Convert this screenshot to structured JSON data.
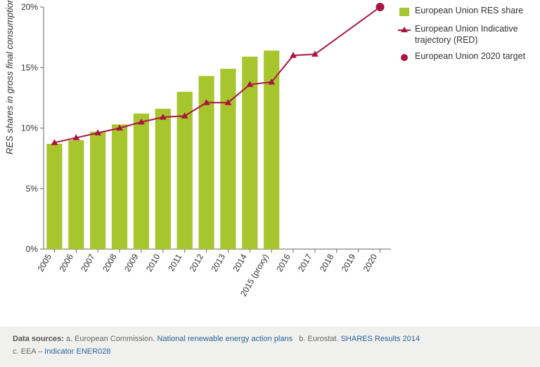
{
  "chart": {
    "type": "bar+line+point",
    "ylabel": "RES shares in gross final consumption",
    "ylabel_fontsize": 13,
    "ylabel_italic": true,
    "ylim": [
      0,
      20
    ],
    "ytick_step": 5,
    "ytick_suffix": "%",
    "tick_fontsize": 12,
    "background_color": "#ffffff",
    "axis_color": "#666666",
    "categories": [
      "2005",
      "2006",
      "2007",
      "2008",
      "2009",
      "2010",
      "2011",
      "2012",
      "2013",
      "2014",
      "2015 (proxy)",
      "2016",
      "2017",
      "2018",
      "2019",
      "2020"
    ],
    "xlabel_rotation": -60,
    "bars": {
      "color": "#a7c62d",
      "width": 0.72,
      "values": [
        8.7,
        9.0,
        9.7,
        10.3,
        11.2,
        11.6,
        13.0,
        14.3,
        14.9,
        15.9,
        16.4,
        null,
        null,
        null,
        null,
        null
      ]
    },
    "trajectory": {
      "color": "#ab1441",
      "line_width": 2,
      "marker": "triangle",
      "marker_size": 5,
      "values": [
        8.8,
        9.2,
        9.6,
        10.0,
        10.5,
        10.9,
        11.0,
        12.1,
        12.1,
        13.6,
        13.8,
        16.0,
        16.1,
        null,
        null,
        null
      ]
    },
    "target": {
      "color": "#ab1441",
      "marker": "circle",
      "marker_size": 6,
      "x_index": 15,
      "value": 20
    },
    "line_target_to_last": {
      "from_index": 12,
      "to_index": 15,
      "color": "#ab1441",
      "line_width": 2
    }
  },
  "legend": {
    "items": [
      {
        "kind": "bar",
        "color": "#a7c62d",
        "label": "European Union RES share"
      },
      {
        "kind": "line-tri",
        "color": "#ab1441",
        "label": "European Union Indicative trajectory (RED)"
      },
      {
        "kind": "dot",
        "color": "#ab1441",
        "label": "European Union 2020 target"
      }
    ]
  },
  "footer": {
    "lead": "Data sources:",
    "a_pre": "a. European Commission.",
    "a_link": "National renewable energy action plans",
    "b_pre": "b. Eurostat.",
    "b_link": "SHARES Results 2014",
    "c_pre": "c. EEA –",
    "c_link": "Indicator ENER028"
  }
}
